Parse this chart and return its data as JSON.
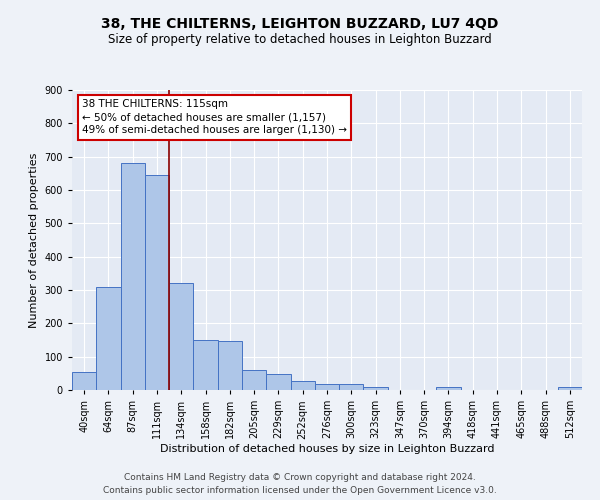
{
  "title": "38, THE CHILTERNS, LEIGHTON BUZZARD, LU7 4QD",
  "subtitle": "Size of property relative to detached houses in Leighton Buzzard",
  "xlabel": "Distribution of detached houses by size in Leighton Buzzard",
  "ylabel": "Number of detached properties",
  "bin_labels": [
    "40sqm",
    "64sqm",
    "87sqm",
    "111sqm",
    "134sqm",
    "158sqm",
    "182sqm",
    "205sqm",
    "229sqm",
    "252sqm",
    "276sqm",
    "300sqm",
    "323sqm",
    "347sqm",
    "370sqm",
    "394sqm",
    "418sqm",
    "441sqm",
    "465sqm",
    "488sqm",
    "512sqm"
  ],
  "bar_heights": [
    55,
    308,
    682,
    645,
    320,
    150,
    148,
    60,
    47,
    28,
    18,
    18,
    10,
    0,
    0,
    10,
    0,
    0,
    0,
    0,
    10
  ],
  "bar_color": "#aec6e8",
  "bar_edge_color": "#4472c4",
  "vline_color": "#8b0000",
  "annotation_text": "38 THE CHILTERNS: 115sqm\n← 50% of detached houses are smaller (1,157)\n49% of semi-detached houses are larger (1,130) →",
  "annotation_box_color": "#ffffff",
  "annotation_box_edge": "#cc0000",
  "ylim": [
    0,
    900
  ],
  "yticks": [
    0,
    100,
    200,
    300,
    400,
    500,
    600,
    700,
    800,
    900
  ],
  "footer_line1": "Contains HM Land Registry data © Crown copyright and database right 2024.",
  "footer_line2": "Contains public sector information licensed under the Open Government Licence v3.0.",
  "bg_color": "#eef2f8",
  "plot_bg_color": "#e4eaf4",
  "grid_color": "#ffffff",
  "title_fontsize": 10,
  "subtitle_fontsize": 8.5,
  "axis_label_fontsize": 8,
  "tick_fontsize": 7,
  "annotation_fontsize": 7.5,
  "footer_fontsize": 6.5
}
